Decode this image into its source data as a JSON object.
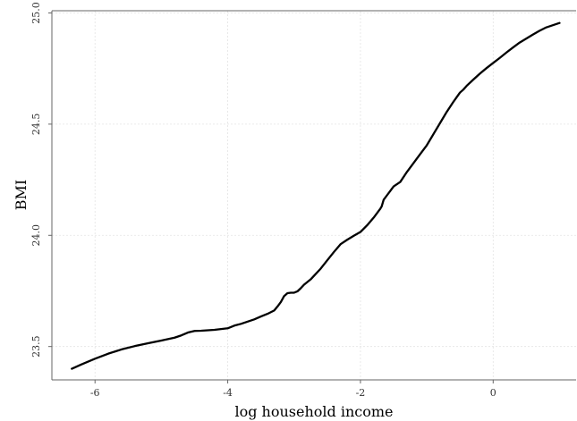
{
  "chart_data": {
    "type": "line",
    "xlabel": "log household income",
    "ylabel": "BMI",
    "xlim": [
      -6.65,
      1.25
    ],
    "ylim": [
      23.35,
      25.01
    ],
    "x_ticks": [
      -6,
      -4,
      -2,
      0
    ],
    "x_tick_labels": [
      "-6",
      "-4",
      "-2",
      "0"
    ],
    "y_ticks": [
      23.5,
      24.0,
      24.5,
      25.0
    ],
    "y_tick_labels": [
      "23.5",
      "24.0",
      "24.5",
      "25.0"
    ],
    "grid": true,
    "series": [
      {
        "color": "#000000",
        "points": [
          [
            -6.35,
            23.4
          ],
          [
            -6.2,
            23.42
          ],
          [
            -6.0,
            23.445
          ],
          [
            -5.8,
            23.468
          ],
          [
            -5.6,
            23.487
          ],
          [
            -5.4,
            23.502
          ],
          [
            -5.2,
            23.515
          ],
          [
            -5.0,
            23.527
          ],
          [
            -4.8,
            23.54
          ],
          [
            -4.7,
            23.55
          ],
          [
            -4.6,
            23.563
          ],
          [
            -4.5,
            23.57
          ],
          [
            -4.4,
            23.571
          ],
          [
            -4.2,
            23.575
          ],
          [
            -4.0,
            23.582
          ],
          [
            -3.9,
            23.594
          ],
          [
            -3.8,
            23.602
          ],
          [
            -3.7,
            23.612
          ],
          [
            -3.6,
            23.622
          ],
          [
            -3.5,
            23.635
          ],
          [
            -3.4,
            23.647
          ],
          [
            -3.3,
            23.662
          ],
          [
            -3.25,
            23.68
          ],
          [
            -3.2,
            23.7
          ],
          [
            -3.15,
            23.727
          ],
          [
            -3.1,
            23.74
          ],
          [
            -3.05,
            23.742
          ],
          [
            -3.0,
            23.742
          ],
          [
            -2.95,
            23.748
          ],
          [
            -2.9,
            23.762
          ],
          [
            -2.85,
            23.778
          ],
          [
            -2.8,
            23.79
          ],
          [
            -2.75,
            23.802
          ],
          [
            -2.7,
            23.818
          ],
          [
            -2.6,
            23.85
          ],
          [
            -2.5,
            23.888
          ],
          [
            -2.4,
            23.925
          ],
          [
            -2.3,
            23.96
          ],
          [
            -2.2,
            23.98
          ],
          [
            -2.1,
            23.998
          ],
          [
            -2.0,
            24.015
          ],
          [
            -1.9,
            24.045
          ],
          [
            -1.8,
            24.08
          ],
          [
            -1.75,
            24.1
          ],
          [
            -1.7,
            24.12
          ],
          [
            -1.68,
            24.13
          ],
          [
            -1.65,
            24.16
          ],
          [
            -1.6,
            24.18
          ],
          [
            -1.55,
            24.2
          ],
          [
            -1.5,
            24.22
          ],
          [
            -1.4,
            24.24
          ],
          [
            -1.3,
            24.285
          ],
          [
            -1.2,
            24.325
          ],
          [
            -1.1,
            24.365
          ],
          [
            -1.0,
            24.405
          ],
          [
            -0.9,
            24.455
          ],
          [
            -0.8,
            24.505
          ],
          [
            -0.7,
            24.555
          ],
          [
            -0.6,
            24.6
          ],
          [
            -0.5,
            24.642
          ],
          [
            -0.45,
            24.655
          ],
          [
            -0.4,
            24.672
          ],
          [
            -0.3,
            24.7
          ],
          [
            -0.2,
            24.727
          ],
          [
            -0.1,
            24.752
          ],
          [
            0.0,
            24.775
          ],
          [
            0.1,
            24.798
          ],
          [
            0.2,
            24.822
          ],
          [
            0.3,
            24.845
          ],
          [
            0.4,
            24.867
          ],
          [
            0.5,
            24.885
          ],
          [
            0.6,
            24.903
          ],
          [
            0.7,
            24.92
          ],
          [
            0.8,
            24.935
          ],
          [
            0.9,
            24.945
          ],
          [
            1.0,
            24.955
          ]
        ]
      }
    ]
  }
}
